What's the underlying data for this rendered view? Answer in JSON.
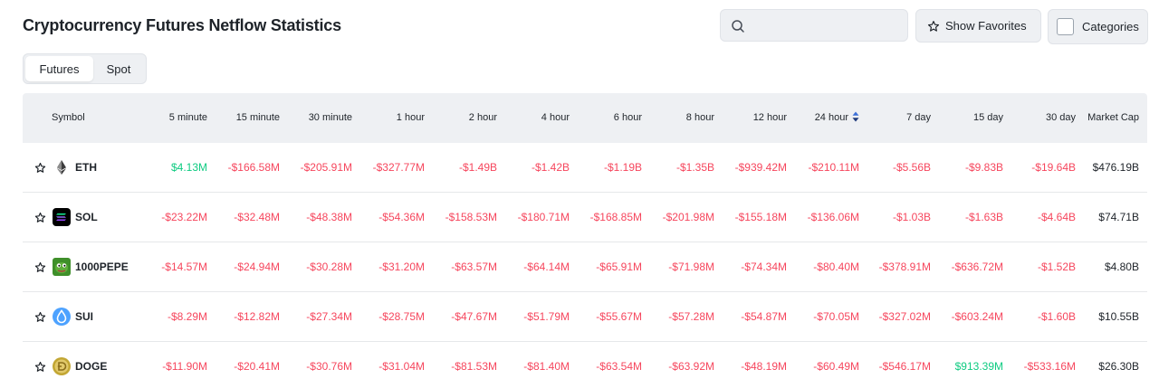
{
  "page": {
    "title": "Cryptocurrency Futures Netflow Statistics"
  },
  "search": {
    "value": "",
    "placeholder": ""
  },
  "buttons": {
    "favorites": "Show Favorites",
    "categories": "Categories"
  },
  "tabs": [
    "Futures",
    "Spot"
  ],
  "table": {
    "headers": [
      "Symbol",
      "5 minute",
      "15 minute",
      "30 minute",
      "1 hour",
      "2 hour",
      "4 hour",
      "6 hour",
      "8 hour",
      "12 hour",
      "24 hour",
      "7 day",
      "15 day",
      "30 day",
      "Market Cap"
    ],
    "sorted_column": "24 hour",
    "rows": [
      {
        "symbol": "ETH",
        "icon": "eth-icon",
        "values": [
          "$4.13M",
          "-$166.58M",
          "-$205.91M",
          "-$327.77M",
          "-$1.49B",
          "-$1.42B",
          "-$1.19B",
          "-$1.35B",
          "-$939.42M",
          "-$210.11M",
          "-$5.56B",
          "-$9.83B",
          "-$19.64B"
        ],
        "market_cap": "$476.19B"
      },
      {
        "symbol": "SOL",
        "icon": "sol-icon",
        "values": [
          "-$23.22M",
          "-$32.48M",
          "-$48.38M",
          "-$54.36M",
          "-$158.53M",
          "-$180.71M",
          "-$168.85M",
          "-$201.98M",
          "-$155.18M",
          "-$136.06M",
          "-$1.03B",
          "-$1.63B",
          "-$4.64B"
        ],
        "market_cap": "$74.71B"
      },
      {
        "symbol": "1000PEPE",
        "icon": "pepe-icon",
        "values": [
          "-$14.57M",
          "-$24.94M",
          "-$30.28M",
          "-$31.20M",
          "-$63.57M",
          "-$64.14M",
          "-$65.91M",
          "-$71.98M",
          "-$74.34M",
          "-$80.40M",
          "-$378.91M",
          "-$636.72M",
          "-$1.52B"
        ],
        "market_cap": "$4.80B"
      },
      {
        "symbol": "SUI",
        "icon": "sui-icon",
        "values": [
          "-$8.29M",
          "-$12.82M",
          "-$27.34M",
          "-$28.75M",
          "-$47.67M",
          "-$51.79M",
          "-$55.67M",
          "-$57.28M",
          "-$54.87M",
          "-$70.05M",
          "-$327.02M",
          "-$603.24M",
          "-$1.60B"
        ],
        "market_cap": "$10.55B"
      },
      {
        "symbol": "DOGE",
        "icon": "doge-icon",
        "values": [
          "-$11.90M",
          "-$20.41M",
          "-$30.76M",
          "-$31.04M",
          "-$81.53M",
          "-$81.40M",
          "-$63.54M",
          "-$63.92M",
          "-$48.19M",
          "-$60.49M",
          "-$546.17M",
          "$913.39M",
          "-$533.16M"
        ],
        "market_cap": "$26.30B"
      }
    ]
  },
  "colors": {
    "negative": "#f6465d",
    "positive": "#0ecb81",
    "header_bg": "#eef0f3",
    "sort_active": "#3b6fd8"
  }
}
